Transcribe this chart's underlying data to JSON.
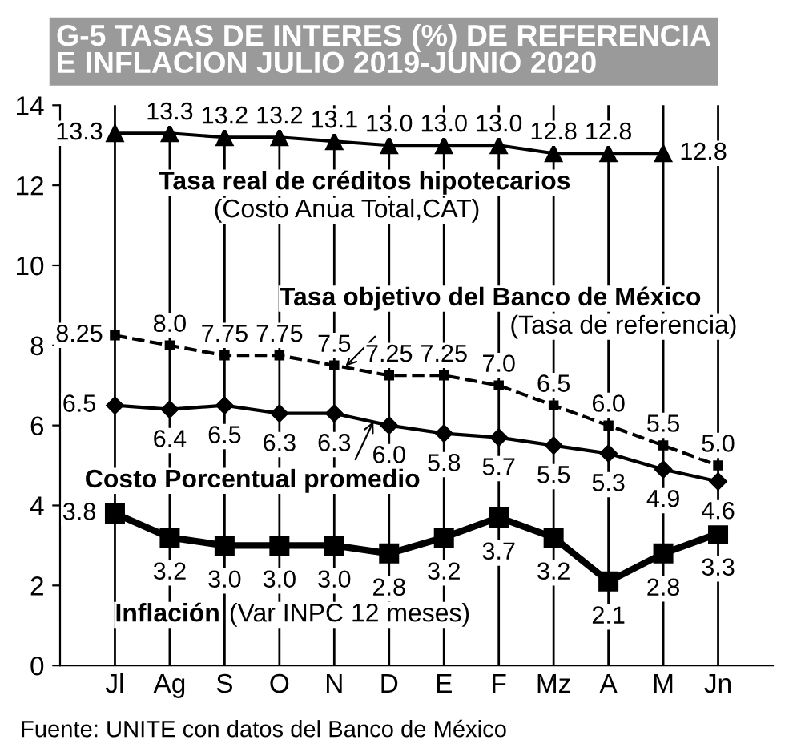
{
  "chart_data": {
    "type": "line",
    "title": "G-5 TASAS DE INTERES (%) DE REFERENCIA\nE INFLACION JULIO 2019-JUNIO 2020",
    "categories": [
      "Jl",
      "Ag",
      "S",
      "O",
      "N",
      "D",
      "E",
      "F",
      "Mz",
      "A",
      "M",
      "Jn"
    ],
    "series": [
      {
        "name": "Tasa real de créditos hipotecarios",
        "color": "#000000",
        "marker": "triangle",
        "line_style": "solid",
        "values": [
          13.3,
          13.3,
          13.2,
          13.2,
          13.1,
          13.0,
          13.0,
          13.0,
          12.8,
          12.8,
          12.8,
          null
        ],
        "value_labels": [
          "13.3",
          "13.3",
          "13.2",
          "13.2",
          "13.1",
          "13.0",
          "13.0",
          "13.0",
          "12.8",
          "12.8",
          "12.8",
          null
        ]
      },
      {
        "name": "Tasa objetivo del Banco de México",
        "color": "#000000",
        "marker": "square",
        "line_style": "dashed",
        "values": [
          8.25,
          8.0,
          7.75,
          7.75,
          7.5,
          7.25,
          7.25,
          7.0,
          6.5,
          6.0,
          5.5,
          5.0
        ],
        "value_labels": [
          "8.25",
          "8.0",
          "7.75",
          "7.75",
          "7.5",
          "7.25",
          "7.25",
          "7.0",
          "6.5",
          "6.0",
          "5.5",
          "5.0"
        ]
      },
      {
        "name": "Costo Porcentual promedio",
        "color": "#000000",
        "marker": "diamond",
        "line_style": "solid",
        "values": [
          6.5,
          6.4,
          6.5,
          6.3,
          6.3,
          6.0,
          5.8,
          5.7,
          5.5,
          5.3,
          4.9,
          4.6
        ],
        "value_labels": [
          "6.5",
          "6.4",
          "6.5",
          "6.3",
          "6.3",
          "6.0",
          "5.8",
          "5.7",
          "5.5",
          "5.3",
          "4.9",
          "4.6"
        ]
      },
      {
        "name": "Inflación",
        "color": "#000000",
        "marker": "square",
        "line_style": "solid",
        "values": [
          3.8,
          3.2,
          3.0,
          3.0,
          3.0,
          2.8,
          3.2,
          3.7,
          3.2,
          2.1,
          2.8,
          3.3
        ],
        "value_labels": [
          "3.8",
          "3.2",
          "3.0",
          "3.0",
          "3.0",
          "2.8",
          "3.2",
          "3.7",
          "3.2",
          "2.1",
          "2.8",
          "3.3"
        ]
      }
    ],
    "annotations": [
      "(Costo Anua Total,CAT)",
      "(Tasa de referencia)",
      "(Var INPC 12 meses)",
      "Fuente: UNITE con datos del Banco de México"
    ],
    "ylim": [
      0,
      14
    ],
    "yticks": [
      0,
      2,
      4,
      6,
      8,
      10,
      12,
      14
    ],
    "grid": "x",
    "legend": false
  }
}
